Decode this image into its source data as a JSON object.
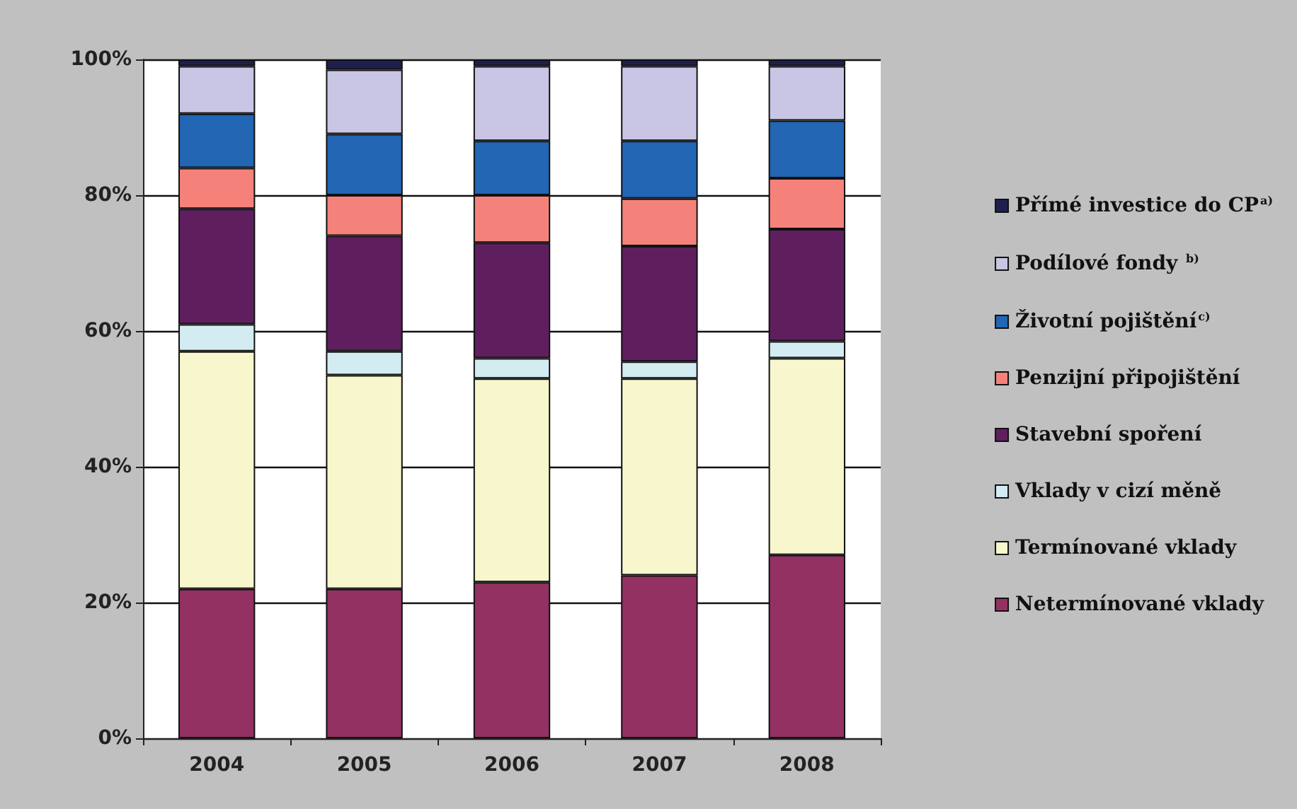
{
  "chart_data": {
    "type": "bar",
    "stacked": true,
    "categories": [
      "2004",
      "2005",
      "2006",
      "2007",
      "2008"
    ],
    "series": [
      {
        "name": "Netermínované vklady",
        "color": "#943163",
        "values": [
          22,
          22,
          23,
          24,
          27
        ]
      },
      {
        "name": "Termínované vklady",
        "color": "#f8f6cc",
        "values": [
          35,
          31.5,
          30,
          29,
          29
        ]
      },
      {
        "name": "Vklady v cizí měně",
        "color": "#d2ecf2",
        "values": [
          4,
          3.5,
          3,
          2.5,
          2.5
        ]
      },
      {
        "name": "Stavební spoření",
        "color": "#5f1f5f",
        "values": [
          17,
          17,
          17,
          17,
          16.5
        ]
      },
      {
        "name": "Penzijní připojištění",
        "color": "#f4827a",
        "values": [
          6,
          6,
          7,
          7,
          7.5
        ]
      },
      {
        "name": "Životní pojištění$^{c)}$",
        "color": "#2266b4",
        "values": [
          8,
          9,
          8,
          8.5,
          8.5
        ]
      },
      {
        "name": "Podílové fondy $^{b)}$",
        "color": "#c8c6e4",
        "values": [
          7,
          9.5,
          11,
          11,
          8
        ]
      },
      {
        "name": "Přímé investice do CP$^{a)}$",
        "color": "#1f1f4f",
        "values": [
          1,
          1.5,
          1,
          1,
          1
        ]
      }
    ],
    "ylim": [
      0,
      100
    ],
    "yticks": [
      {
        "value": 0,
        "label": "0%"
      },
      {
        "value": 20,
        "label": "20%"
      },
      {
        "value": 40,
        "label": "40%"
      },
      {
        "value": 60,
        "label": "60%"
      },
      {
        "value": 80,
        "label": "80%"
      },
      {
        "value": 100,
        "label": "100%"
      }
    ],
    "grid": "y",
    "legend": "right"
  }
}
